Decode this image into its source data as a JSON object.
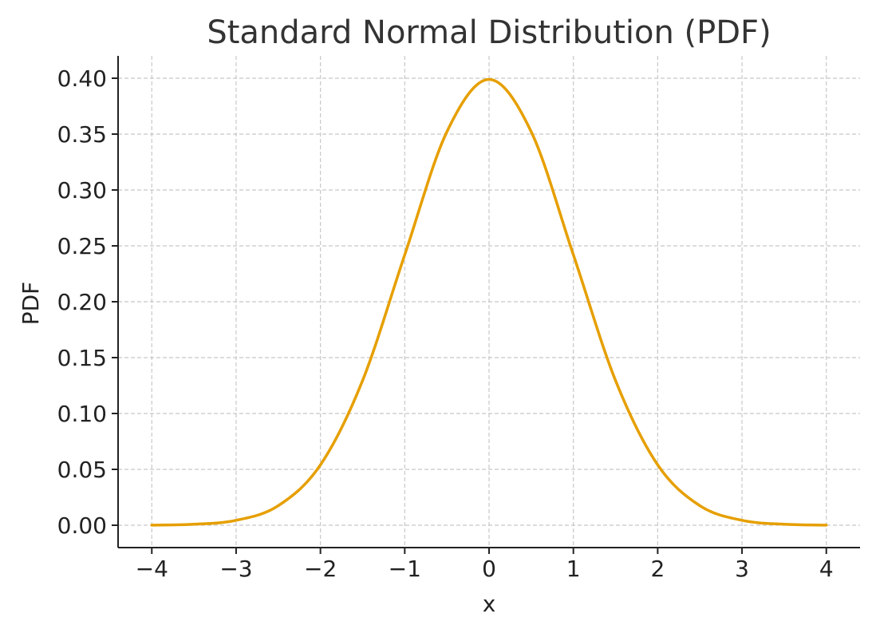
{
  "chart_data": {
    "type": "line",
    "title": "Standard Normal Distribution (PDF)",
    "xlabel": "x",
    "ylabel": "PDF",
    "xlim": [
      -4.4,
      4.4
    ],
    "ylim": [
      -0.02,
      0.42
    ],
    "x_ticks": [
      -4,
      -3,
      -2,
      -1,
      0,
      1,
      2,
      3,
      4
    ],
    "x_tick_labels": [
      "−4",
      "−3",
      "−2",
      "−1",
      "0",
      "1",
      "2",
      "3",
      "4"
    ],
    "y_ticks": [
      0.0,
      0.05,
      0.1,
      0.15,
      0.2,
      0.25,
      0.3,
      0.35,
      0.4
    ],
    "y_tick_labels": [
      "0.00",
      "0.05",
      "0.10",
      "0.15",
      "0.20",
      "0.25",
      "0.30",
      "0.35",
      "0.40"
    ],
    "grid": true,
    "legend": "none",
    "colors": {
      "line": "#e69f00",
      "grid": "#c8c8c8",
      "axis": "#222222",
      "title": "#333333"
    },
    "series": [
      {
        "x": [
          -4.0,
          -3.5,
          -3.0,
          -2.5,
          -2.0,
          -1.5,
          -1.0,
          -0.5,
          0.0,
          0.5,
          1.0,
          1.5,
          2.0,
          2.5,
          3.0,
          3.5,
          4.0
        ],
        "values": [
          0.0001,
          0.0009,
          0.0044,
          0.0175,
          0.054,
          0.1295,
          0.242,
          0.3521,
          0.3989,
          0.3521,
          0.242,
          0.1295,
          0.054,
          0.0175,
          0.0044,
          0.0009,
          0.0001
        ]
      }
    ]
  }
}
